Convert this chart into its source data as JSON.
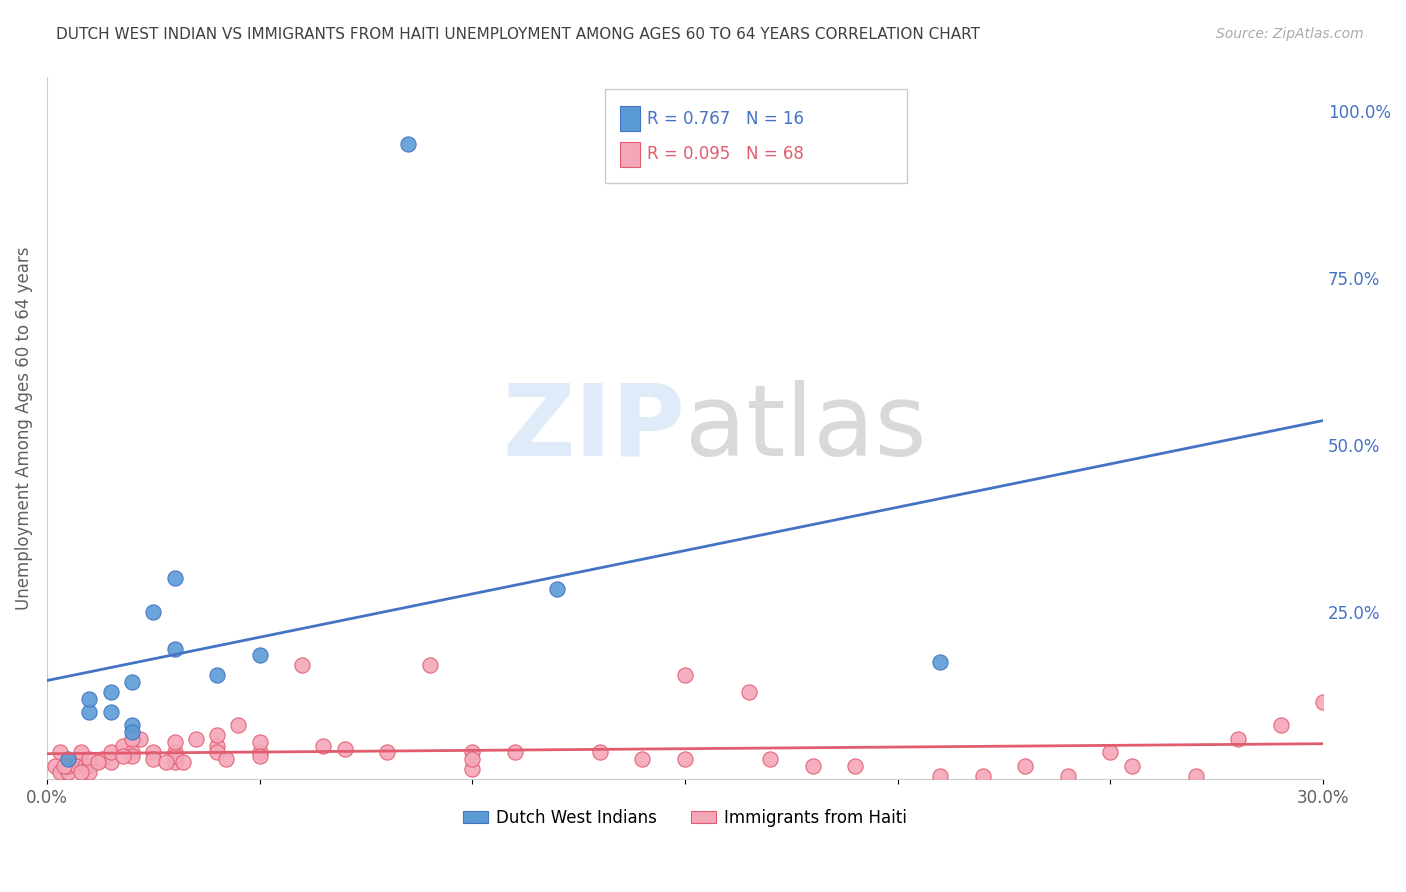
{
  "title": "DUTCH WEST INDIAN VS IMMIGRANTS FROM HAITI UNEMPLOYMENT AMONG AGES 60 TO 64 YEARS CORRELATION CHART",
  "source": "Source: ZipAtlas.com",
  "ylabel": "Unemployment Among Ages 60 to 64 years",
  "xlim": [
    0,
    0.3
  ],
  "ylim": [
    0,
    1.05
  ],
  "yticks": [
    0,
    0.25,
    0.5,
    0.75,
    1.0
  ],
  "ytick_labels": [
    "",
    "25.0%",
    "50.0%",
    "75.0%",
    "100.0%"
  ],
  "xticks": [
    0.0,
    0.05,
    0.1,
    0.15,
    0.2,
    0.25,
    0.3
  ],
  "xtick_labels": [
    "0.0%",
    "",
    "",
    "",
    "",
    "",
    "30.0%"
  ],
  "blue_color": "#5b9bd5",
  "pink_color": "#f4a7b9",
  "blue_line_color": "#4472c4",
  "pink_line_color": "#e05c6e",
  "legend_blue_R": "R = 0.767",
  "legend_blue_N": "N = 16",
  "legend_pink_R": "R = 0.095",
  "legend_pink_N": "N = 68",
  "legend_label_blue": "Dutch West Indians",
  "legend_label_pink": "Immigrants from Haiti",
  "title_color": "#404040",
  "axis_color": "#606060",
  "grid_color": "#cccccc",
  "blue_scatter_x": [
    0.005,
    0.01,
    0.01,
    0.015,
    0.015,
    0.02,
    0.02,
    0.02,
    0.025,
    0.03,
    0.03,
    0.04,
    0.05,
    0.085,
    0.12,
    0.21
  ],
  "blue_scatter_y": [
    0.03,
    0.1,
    0.12,
    0.1,
    0.13,
    0.08,
    0.07,
    0.145,
    0.25,
    0.3,
    0.195,
    0.155,
    0.185,
    0.95,
    0.285,
    0.175
  ],
  "pink_scatter_x": [
    0.002,
    0.003,
    0.005,
    0.005,
    0.007,
    0.007,
    0.008,
    0.009,
    0.01,
    0.01,
    0.01,
    0.013,
    0.015,
    0.015,
    0.018,
    0.02,
    0.02,
    0.022,
    0.025,
    0.025,
    0.03,
    0.03,
    0.03,
    0.03,
    0.035,
    0.04,
    0.04,
    0.04,
    0.042,
    0.045,
    0.05,
    0.05,
    0.05,
    0.06,
    0.065,
    0.07,
    0.08,
    0.09,
    0.1,
    0.1,
    0.1,
    0.11,
    0.13,
    0.14,
    0.15,
    0.15,
    0.165,
    0.17,
    0.18,
    0.19,
    0.21,
    0.22,
    0.23,
    0.24,
    0.25,
    0.255,
    0.27,
    0.28,
    0.29,
    0.3,
    0.003,
    0.004,
    0.008,
    0.012,
    0.018,
    0.02,
    0.028,
    0.032
  ],
  "pink_scatter_y": [
    0.02,
    0.01,
    0.01,
    0.02,
    0.03,
    0.02,
    0.04,
    0.02,
    0.02,
    0.03,
    0.01,
    0.03,
    0.025,
    0.04,
    0.05,
    0.04,
    0.035,
    0.06,
    0.04,
    0.03,
    0.04,
    0.025,
    0.035,
    0.055,
    0.06,
    0.05,
    0.04,
    0.065,
    0.03,
    0.08,
    0.04,
    0.055,
    0.035,
    0.17,
    0.05,
    0.045,
    0.04,
    0.17,
    0.015,
    0.04,
    0.03,
    0.04,
    0.04,
    0.03,
    0.155,
    0.03,
    0.13,
    0.03,
    0.02,
    0.02,
    0.005,
    0.005,
    0.02,
    0.005,
    0.04,
    0.02,
    0.005,
    0.06,
    0.08,
    0.115,
    0.04,
    0.02,
    0.01,
    0.025,
    0.035,
    0.06,
    0.025,
    0.025
  ]
}
